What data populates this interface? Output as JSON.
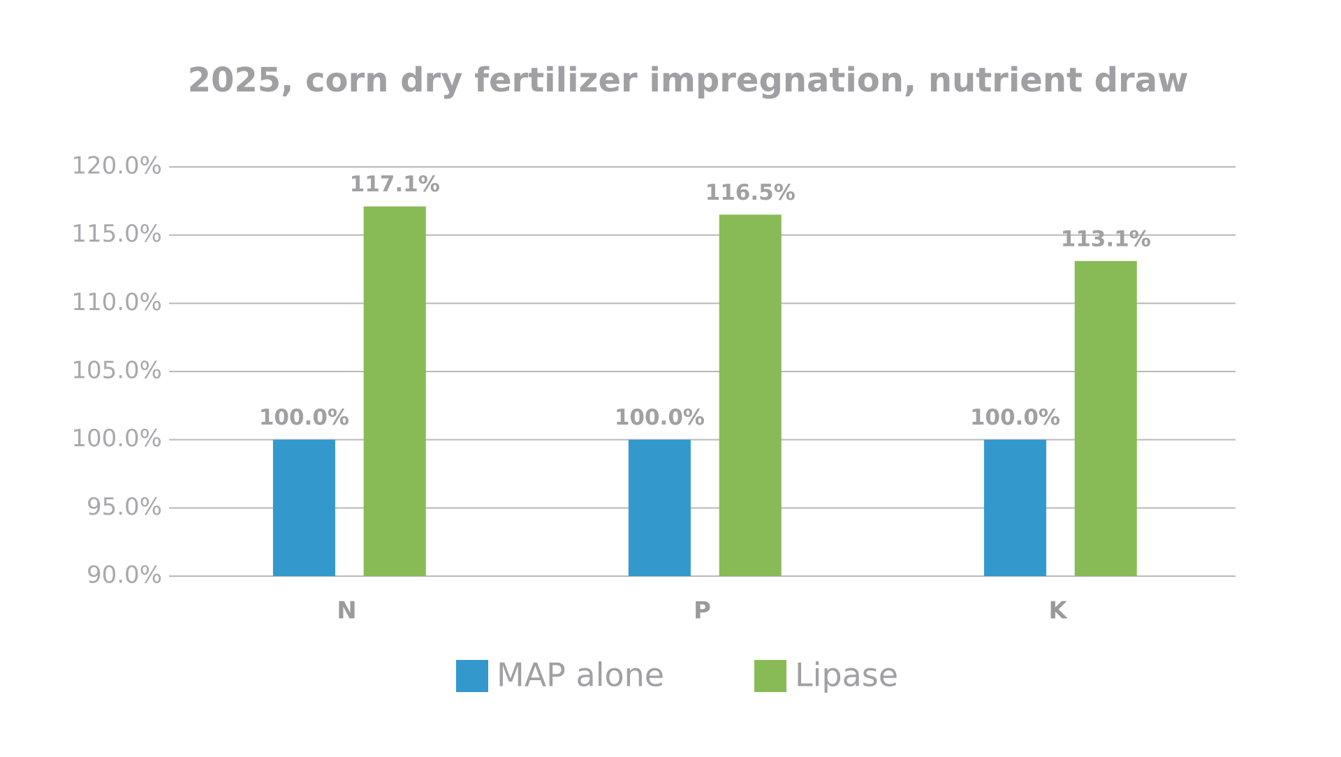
{
  "chart_data": {
    "type": "bar",
    "title": "2025, corn dry fertilizer impregnation, nutrient draw",
    "categories": [
      "N",
      "P",
      "K"
    ],
    "series": [
      {
        "name": "MAP alone",
        "color": "#3399cc",
        "values": [
          100,
          100,
          100
        ],
        "value_labels": [
          "100.0%",
          "100.0%",
          "100.0%"
        ]
      },
      {
        "name": "Lipase",
        "color": "#88bb55",
        "values": [
          117.1,
          116.5,
          113.1
        ],
        "value_labels": [
          "117.1%",
          "116.5%",
          "113.1%"
        ]
      }
    ],
    "ylim": [
      90,
      120
    ],
    "yticks": [
      {
        "value": 90,
        "label": "90.0%"
      },
      {
        "value": 95,
        "label": "95.0%"
      },
      {
        "value": 100,
        "label": "100.0%"
      },
      {
        "value": 105,
        "label": "105.0%"
      },
      {
        "value": 110,
        "label": "110.0%"
      },
      {
        "value": 115,
        "label": "115.0%"
      },
      {
        "value": 120,
        "label": "120.0%"
      }
    ],
    "grid": true,
    "legend": "bottom"
  }
}
